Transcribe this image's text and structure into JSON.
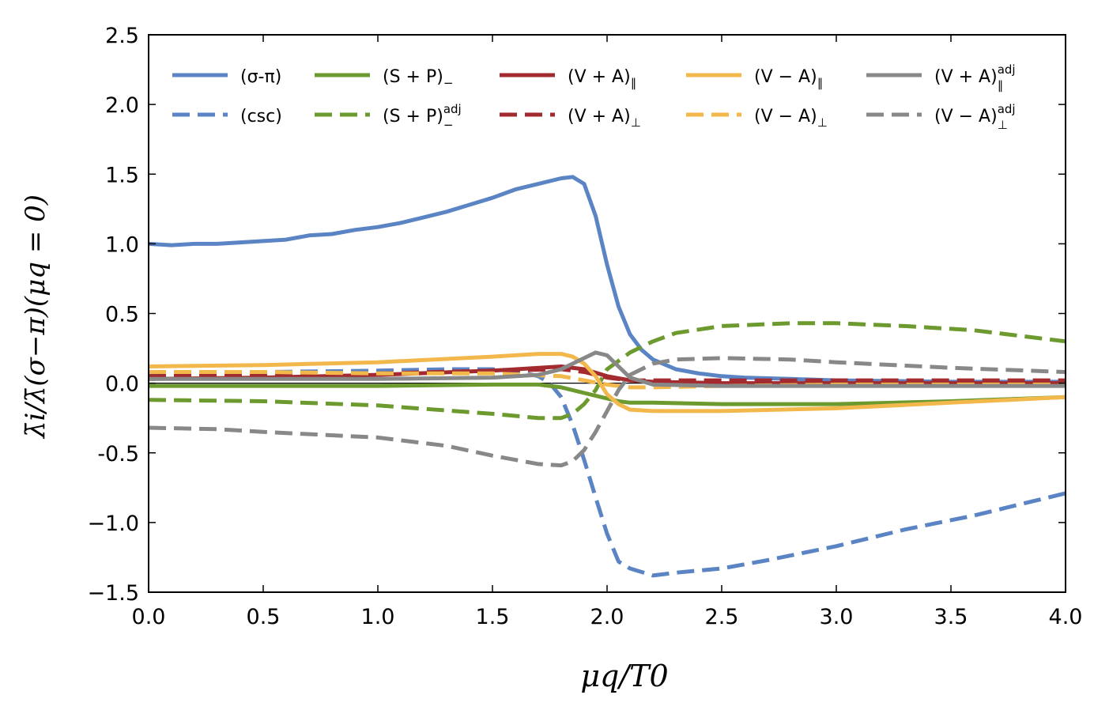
{
  "chart_data": {
    "type": "line",
    "title": "",
    "xlabel": "μq/T0",
    "ylabel": "λ̄i/λ̄(σ−π)(μq = 0)",
    "xlim": [
      0.0,
      4.0
    ],
    "ylim": [
      -1.5,
      2.5
    ],
    "xticks": [
      0.0,
      0.5,
      1.0,
      1.5,
      2.0,
      2.5,
      3.0,
      3.5,
      4.0
    ],
    "xtick_labels": [
      "0.0",
      "0.5",
      "1.0",
      "1.5",
      "2.0",
      "2.5",
      "3.0",
      "3.5",
      "4.0"
    ],
    "yticks": [
      -1.5,
      -1.0,
      -0.5,
      0.0,
      0.5,
      1.0,
      1.5,
      2.0,
      2.5
    ],
    "ytick_labels": [
      "−1.5",
      "−1.0",
      "-0.5",
      "0.0",
      "0.5",
      "1.0",
      "1.5",
      "2.0",
      "2.5"
    ],
    "zero_line": true,
    "legend_position": "top",
    "series": [
      {
        "name": "sigma-pi",
        "legend": {
          "main": "(σ-π)",
          "sub": "",
          "sup": ""
        },
        "color": "#5b84c4",
        "dash": false,
        "x": [
          0,
          0.1,
          0.2,
          0.3,
          0.4,
          0.5,
          0.6,
          0.7,
          0.8,
          0.9,
          1.0,
          1.1,
          1.2,
          1.3,
          1.4,
          1.5,
          1.6,
          1.7,
          1.8,
          1.85,
          1.9,
          1.95,
          2.0,
          2.05,
          2.1,
          2.15,
          2.2,
          2.3,
          2.4,
          2.5,
          2.6,
          2.8,
          3.0,
          3.5,
          4.0
        ],
        "y": [
          1.0,
          0.99,
          1.0,
          1.0,
          1.01,
          1.02,
          1.03,
          1.06,
          1.07,
          1.1,
          1.12,
          1.15,
          1.19,
          1.23,
          1.28,
          1.33,
          1.39,
          1.43,
          1.47,
          1.48,
          1.43,
          1.2,
          0.85,
          0.55,
          0.35,
          0.24,
          0.17,
          0.1,
          0.07,
          0.05,
          0.04,
          0.03,
          0.02,
          0.01,
          0.01
        ]
      },
      {
        "name": "csc",
        "legend": {
          "main": "(csc)",
          "sub": "",
          "sup": ""
        },
        "color": "#5b84c4",
        "dash": true,
        "x": [
          0,
          0.5,
          1.0,
          1.3,
          1.5,
          1.6,
          1.7,
          1.75,
          1.8,
          1.85,
          1.9,
          1.95,
          2.0,
          2.05,
          2.1,
          2.2,
          2.25,
          2.3,
          2.5,
          2.7,
          3.0,
          3.3,
          3.6,
          4.0
        ],
        "y": [
          0.07,
          0.08,
          0.09,
          0.1,
          0.1,
          0.09,
          0.05,
          0.0,
          -0.1,
          -0.3,
          -0.55,
          -0.82,
          -1.08,
          -1.28,
          -1.33,
          -1.38,
          -1.37,
          -1.36,
          -1.33,
          -1.27,
          -1.17,
          -1.05,
          -0.95,
          -0.79
        ]
      },
      {
        "name": "SP-minus",
        "legend": {
          "main": "(S + P)",
          "sub": "−",
          "sup": ""
        },
        "color": "#6d9a2e",
        "dash": false,
        "x": [
          0,
          0.5,
          1.0,
          1.5,
          1.7,
          1.8,
          1.9,
          2.0,
          2.05,
          2.1,
          2.2,
          2.5,
          3.0,
          3.5,
          4.0
        ],
        "y": [
          -0.02,
          -0.02,
          -0.02,
          -0.01,
          -0.01,
          -0.03,
          -0.07,
          -0.11,
          -0.13,
          -0.14,
          -0.14,
          -0.15,
          -0.15,
          -0.13,
          -0.1
        ]
      },
      {
        "name": "SP-minus-adj",
        "legend": {
          "main": "(S + P)",
          "sub": "−",
          "sup": "adj"
        },
        "color": "#6d9a2e",
        "dash": true,
        "x": [
          0,
          0.5,
          1.0,
          1.5,
          1.7,
          1.8,
          1.85,
          1.9,
          1.95,
          2.0,
          2.1,
          2.2,
          2.3,
          2.5,
          2.8,
          3.0,
          3.3,
          3.6,
          4.0
        ],
        "y": [
          -0.12,
          -0.13,
          -0.16,
          -0.22,
          -0.25,
          -0.25,
          -0.22,
          -0.15,
          -0.05,
          0.1,
          0.22,
          0.3,
          0.36,
          0.41,
          0.43,
          0.43,
          0.41,
          0.38,
          0.3
        ]
      },
      {
        "name": "VA-plus-par",
        "legend": {
          "main": "(V + A)",
          "sub": "∥",
          "sup": ""
        },
        "color": "#a32a2e",
        "dash": false,
        "x": [
          0,
          0.5,
          1.0,
          1.5,
          1.8,
          1.9,
          2.0,
          2.1,
          2.2,
          2.5,
          3.0,
          3.5,
          4.0
        ],
        "y": [
          0.03,
          0.04,
          0.06,
          0.09,
          0.12,
          0.1,
          0.05,
          0.02,
          0.01,
          0.0,
          0.0,
          0.0,
          0.0
        ]
      },
      {
        "name": "VA-plus-perp",
        "legend": {
          "main": "(V + A)",
          "sub": "⊥",
          "sup": ""
        },
        "color": "#a32a2e",
        "dash": true,
        "x": [
          0,
          0.5,
          1.0,
          1.5,
          1.8,
          1.9,
          2.0,
          2.1,
          2.2,
          2.5,
          3.0,
          3.5,
          4.0
        ],
        "y": [
          0.05,
          0.06,
          0.07,
          0.09,
          0.1,
          0.08,
          0.04,
          0.02,
          0.02,
          0.02,
          0.02,
          0.02,
          0.02
        ]
      },
      {
        "name": "VA-minus-par",
        "legend": {
          "main": "(V − A)",
          "sub": "∥",
          "sup": ""
        },
        "color": "#f2b84b",
        "dash": false,
        "x": [
          0,
          0.5,
          1.0,
          1.5,
          1.7,
          1.8,
          1.85,
          1.9,
          1.95,
          2.0,
          2.05,
          2.1,
          2.2,
          2.5,
          3.0,
          3.5,
          4.0
        ],
        "y": [
          0.12,
          0.13,
          0.15,
          0.19,
          0.21,
          0.21,
          0.19,
          0.14,
          0.05,
          -0.08,
          -0.15,
          -0.19,
          -0.2,
          -0.2,
          -0.18,
          -0.14,
          -0.1
        ]
      },
      {
        "name": "VA-minus-perp",
        "legend": {
          "main": "(V − A)",
          "sub": "⊥",
          "sup": ""
        },
        "color": "#f2b84b",
        "dash": true,
        "x": [
          0,
          0.5,
          1.0,
          1.5,
          1.8,
          1.9,
          2.0,
          2.05,
          2.1,
          2.2,
          2.5,
          3.0,
          3.5,
          4.0
        ],
        "y": [
          0.08,
          0.08,
          0.07,
          0.07,
          0.05,
          0.02,
          -0.01,
          -0.02,
          -0.03,
          -0.03,
          -0.02,
          -0.01,
          -0.01,
          -0.01
        ]
      },
      {
        "name": "VA-plus-par-adj",
        "legend": {
          "main": "(V + A)",
          "sub": "∥",
          "sup": "adj"
        },
        "color": "#888888",
        "dash": false,
        "x": [
          0,
          0.5,
          1.0,
          1.5,
          1.7,
          1.8,
          1.9,
          1.95,
          2.0,
          2.05,
          2.1,
          2.2,
          2.5,
          3.0,
          3.5,
          4.0
        ],
        "y": [
          0.03,
          0.03,
          0.03,
          0.04,
          0.06,
          0.1,
          0.18,
          0.22,
          0.2,
          0.12,
          0.04,
          -0.01,
          -0.02,
          -0.02,
          -0.02,
          -0.02
        ]
      },
      {
        "name": "VA-minus-perp-adj",
        "legend": {
          "main": "(V − A)",
          "sub": "⊥",
          "sup": "adj"
        },
        "color": "#888888",
        "dash": true,
        "x": [
          0,
          0.3,
          0.5,
          1.0,
          1.3,
          1.5,
          1.7,
          1.8,
          1.85,
          1.9,
          1.95,
          2.0,
          2.05,
          2.1,
          2.2,
          2.3,
          2.5,
          2.8,
          3.0,
          3.5,
          4.0
        ],
        "y": [
          -0.32,
          -0.33,
          -0.35,
          -0.39,
          -0.45,
          -0.52,
          -0.58,
          -0.59,
          -0.56,
          -0.48,
          -0.35,
          -0.2,
          -0.05,
          0.06,
          0.14,
          0.17,
          0.18,
          0.17,
          0.15,
          0.11,
          0.08
        ]
      }
    ]
  }
}
